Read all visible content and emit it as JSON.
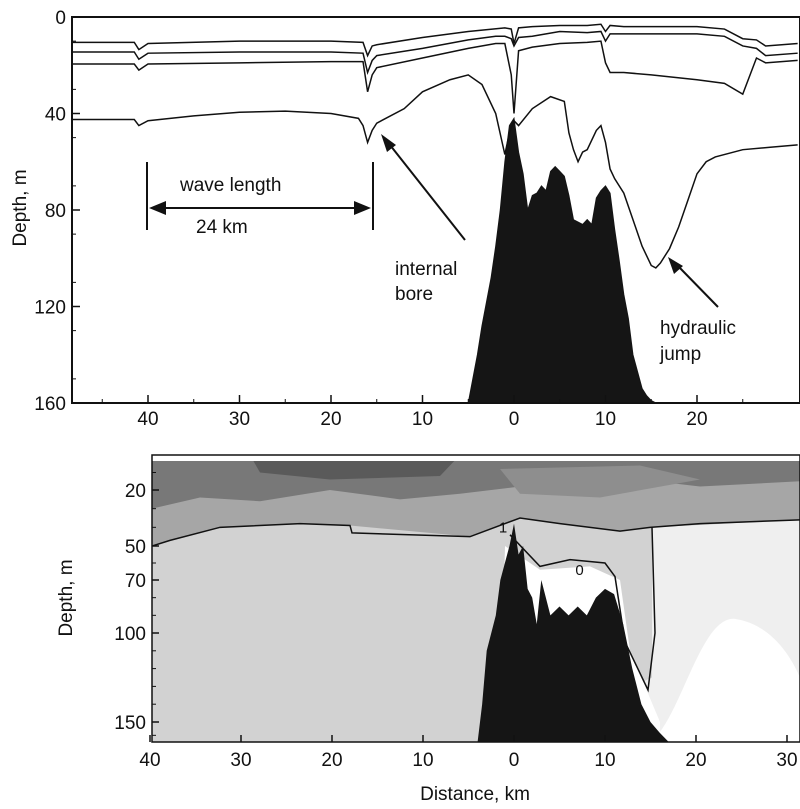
{
  "chart_data": [
    {
      "type": "line",
      "xlabel": "",
      "ylabel": "Depth, m",
      "x_ticks": [
        {
          "value": -40,
          "label": "40"
        },
        {
          "value": -30,
          "label": "30"
        },
        {
          "value": -20,
          "label": "20"
        },
        {
          "value": -10,
          "label": "10"
        },
        {
          "value": 0,
          "label": "0"
        },
        {
          "value": 10,
          "label": "10"
        },
        {
          "value": 20,
          "label": "20"
        }
      ],
      "y_ticks": [
        0,
        40,
        80,
        120,
        160
      ],
      "xlim": [
        -48.5,
        31
      ],
      "ylim": [
        0,
        160
      ],
      "y_inverted": true,
      "grid": false,
      "series": [
        {
          "x": [
            -48.5,
            -41.5,
            -41,
            -40,
            -30,
            -20,
            -16.5,
            -16,
            -15.5,
            -15,
            -10,
            -5,
            -1,
            -0.3,
            0,
            0.5,
            2,
            5,
            8,
            9.5,
            10,
            10.5,
            12,
            15,
            20,
            23,
            25,
            26.5,
            27.5,
            31
          ],
          "y": [
            10.5,
            10.5,
            13.5,
            11,
            10,
            10,
            10.5,
            16,
            12,
            11.5,
            8.5,
            6,
            4.5,
            5,
            11,
            4.5,
            4,
            3.5,
            3.5,
            3,
            6,
            3.5,
            4,
            4,
            4,
            5,
            9,
            9.5,
            12,
            11
          ]
        },
        {
          "x": [
            -48.5,
            -41.5,
            -41,
            -40,
            -30,
            -20,
            -16.5,
            -16,
            -15.5,
            -15,
            -10,
            -5,
            -2,
            -1,
            -0.3,
            0,
            0.5,
            2,
            5,
            8,
            9.5,
            10,
            10.5,
            12,
            15,
            20,
            23,
            25,
            26.5,
            27.5,
            31
          ],
          "y": [
            14.5,
            14.5,
            17.5,
            15,
            14.5,
            14.5,
            15,
            23,
            18,
            16,
            13,
            9.5,
            8,
            8,
            9,
            12,
            8.5,
            8,
            6,
            6.5,
            6,
            10,
            7,
            7,
            7,
            7,
            8,
            12,
            13,
            16,
            15
          ]
        },
        {
          "x": [
            -48.5,
            -41.5,
            -41,
            -40,
            -30,
            -20,
            -16.5,
            -16,
            -15.5,
            -15,
            -10,
            -5,
            -2,
            -1,
            -0.3,
            0,
            0.5,
            2,
            5,
            8,
            9.5,
            10,
            10.5,
            12,
            15,
            20,
            23,
            25,
            26.5,
            27.5,
            31
          ],
          "y": [
            19.5,
            19.5,
            22,
            19.5,
            19,
            18.5,
            18.5,
            31,
            24,
            21,
            17,
            13,
            11,
            11,
            24,
            40,
            14,
            12.5,
            11,
            10.5,
            10,
            19,
            23,
            23,
            24,
            26,
            27.5,
            32,
            17,
            19,
            18
          ]
        },
        {
          "x": [
            -48.5,
            -41.5,
            -41,
            -40,
            -35,
            -30,
            -25,
            -20,
            -17,
            -16.5,
            -16,
            -15.5,
            -15,
            -12,
            -10,
            -7,
            -5,
            -3.5,
            -2,
            -1,
            -0.5,
            0,
            0.5,
            2,
            4,
            5.5,
            6,
            6.5,
            7,
            7.5,
            8,
            9,
            9.5,
            10,
            10.5,
            11,
            12,
            13,
            14,
            15,
            15.5,
            16,
            17,
            18,
            19,
            20,
            21,
            22,
            25,
            28,
            31
          ],
          "y": [
            42.5,
            42.5,
            45,
            43,
            41,
            39.5,
            39,
            40,
            42,
            45,
            52,
            47,
            44,
            38,
            31,
            26,
            24,
            28,
            40,
            57,
            48,
            43,
            45,
            38,
            33,
            35,
            48,
            55,
            60,
            56,
            55,
            47,
            45,
            52,
            63,
            67,
            73,
            84,
            95,
            103,
            104,
            102,
            96,
            87,
            76,
            65,
            60,
            58,
            55,
            54,
            53
          ]
        }
      ],
      "bathymetry": {
        "x": [
          -5,
          -4.5,
          -4,
          -3.5,
          -3,
          -2.5,
          -2,
          -1.5,
          -1,
          -0.5,
          0,
          0.5,
          1,
          1.5,
          2,
          2.5,
          3,
          3.5,
          4,
          4.5,
          5,
          5.5,
          6,
          6.5,
          7,
          7.5,
          8,
          8.5,
          9,
          9.5,
          10,
          10.5,
          11,
          11.5,
          12,
          12.5,
          13,
          13.5,
          14,
          14.5,
          15,
          15.5
        ],
        "y": [
          160,
          150,
          140,
          128,
          118,
          108,
          95,
          80,
          60,
          45,
          42,
          56,
          65,
          80,
          74,
          73,
          70,
          72,
          64,
          62,
          64,
          66,
          74,
          84,
          85,
          86,
          84,
          86,
          75,
          72,
          70,
          73,
          88,
          101,
          115,
          125,
          140,
          147,
          154,
          157,
          159,
          160
        ]
      },
      "annotations": {
        "wave_length": "wave length",
        "wave_km": "24 km",
        "internal": "internal",
        "bore": "bore",
        "hydraulic": "hydraulic",
        "jump": "jump"
      }
    },
    {
      "type": "heatmap",
      "xlabel": "Distance, km",
      "ylabel": "Depth, m",
      "x_ticks": [
        {
          "value": -40,
          "label": "40"
        },
        {
          "value": -30,
          "label": "30"
        },
        {
          "value": -20,
          "label": "20"
        },
        {
          "value": -10,
          "label": "10"
        },
        {
          "value": 0,
          "label": "0"
        },
        {
          "value": 10,
          "label": "10"
        },
        {
          "value": 20,
          "label": "20"
        },
        {
          "value": 30,
          "label": "30"
        }
      ],
      "y_ticks": [
        20,
        50,
        70,
        100,
        150
      ],
      "xlim": [
        -40.5,
        31
      ],
      "ylim": [
        0,
        165
      ],
      "y_inverted": true,
      "contour_labels": [
        {
          "text": "1",
          "x": -1.2,
          "y": 40
        },
        {
          "text": "0",
          "x": 7.2,
          "y": 64
        }
      ],
      "bathymetry": {
        "x": [
          -4,
          -3.5,
          -3,
          -2,
          -1.5,
          -1,
          -0.5,
          0,
          0.5,
          1,
          1.5,
          2,
          2.5,
          3,
          3.5,
          4,
          5,
          6,
          7,
          8,
          9,
          10,
          11,
          12,
          13,
          14,
          15,
          16,
          17
        ],
        "y": [
          165,
          140,
          110,
          90,
          70,
          60,
          50,
          38,
          55,
          50,
          75,
          80,
          95,
          70,
          80,
          90,
          85,
          90,
          85,
          90,
          80,
          75,
          78,
          95,
          120,
          140,
          150,
          158,
          165
        ]
      },
      "colors": {
        "deep_water": "#d2d2d2",
        "surface_dark": "#787878",
        "mid_gray": "#a6a6a6",
        "light_region": "#efefef",
        "white_region": "#ffffff",
        "seabed": "#151515"
      }
    }
  ]
}
